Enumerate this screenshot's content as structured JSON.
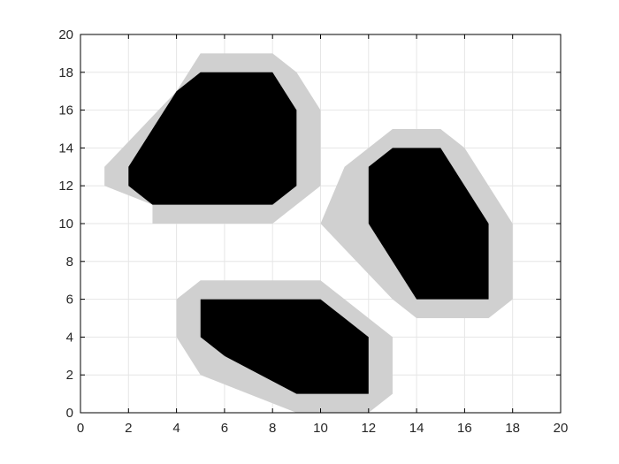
{
  "chart_data": {
    "type": "area",
    "xlim": [
      0,
      20
    ],
    "ylim": [
      0,
      20
    ],
    "x_ticks": [
      0,
      2,
      4,
      6,
      8,
      10,
      12,
      14,
      16,
      18,
      20
    ],
    "y_ticks": [
      0,
      2,
      4,
      6,
      8,
      10,
      12,
      14,
      16,
      18,
      20
    ],
    "x_tick_labels": [
      "0",
      "2",
      "4",
      "6",
      "8",
      "10",
      "12",
      "14",
      "16",
      "18",
      "20"
    ],
    "y_tick_labels": [
      "0",
      "2",
      "4",
      "6",
      "8",
      "10",
      "12",
      "14",
      "16",
      "18",
      "20"
    ],
    "grid": true,
    "colors": {
      "obstacle": "#000000",
      "inflated": "#d0d0d0",
      "grid": "#e6e6e6",
      "axes": "#000000"
    },
    "series": [
      {
        "inflated": [
          [
            3,
            11
          ],
          [
            1,
            12
          ],
          [
            1,
            13
          ],
          [
            4,
            17
          ],
          [
            5,
            19
          ],
          [
            8,
            19
          ],
          [
            9,
            18
          ],
          [
            10,
            16
          ],
          [
            10,
            12
          ],
          [
            8,
            10
          ],
          [
            3,
            10
          ]
        ],
        "polygon": [
          [
            3,
            11
          ],
          [
            2,
            12
          ],
          [
            2,
            13
          ],
          [
            4,
            17
          ],
          [
            5,
            18
          ],
          [
            8,
            18
          ],
          [
            9,
            16
          ],
          [
            9,
            12
          ],
          [
            8,
            11
          ]
        ]
      },
      {
        "inflated": [
          [
            11,
            13
          ],
          [
            13,
            15
          ],
          [
            15,
            15
          ],
          [
            16,
            14
          ],
          [
            18,
            10
          ],
          [
            18,
            6
          ],
          [
            17,
            5
          ],
          [
            14,
            5
          ],
          [
            13,
            6
          ],
          [
            10,
            10
          ]
        ],
        "polygon": [
          [
            12,
            13
          ],
          [
            13,
            14
          ],
          [
            15,
            14
          ],
          [
            17,
            10
          ],
          [
            17,
            6
          ],
          [
            14,
            6
          ],
          [
            12,
            10
          ]
        ]
      },
      {
        "inflated": [
          [
            4,
            6
          ],
          [
            5,
            7
          ],
          [
            10,
            7
          ],
          [
            13,
            4
          ],
          [
            13,
            1
          ],
          [
            12,
            0
          ],
          [
            9,
            0
          ],
          [
            5,
            2
          ],
          [
            4,
            4
          ]
        ],
        "polygon": [
          [
            5,
            6
          ],
          [
            10,
            6
          ],
          [
            12,
            4
          ],
          [
            12,
            1
          ],
          [
            9,
            1
          ],
          [
            6,
            3
          ],
          [
            5,
            4
          ]
        ]
      }
    ]
  }
}
